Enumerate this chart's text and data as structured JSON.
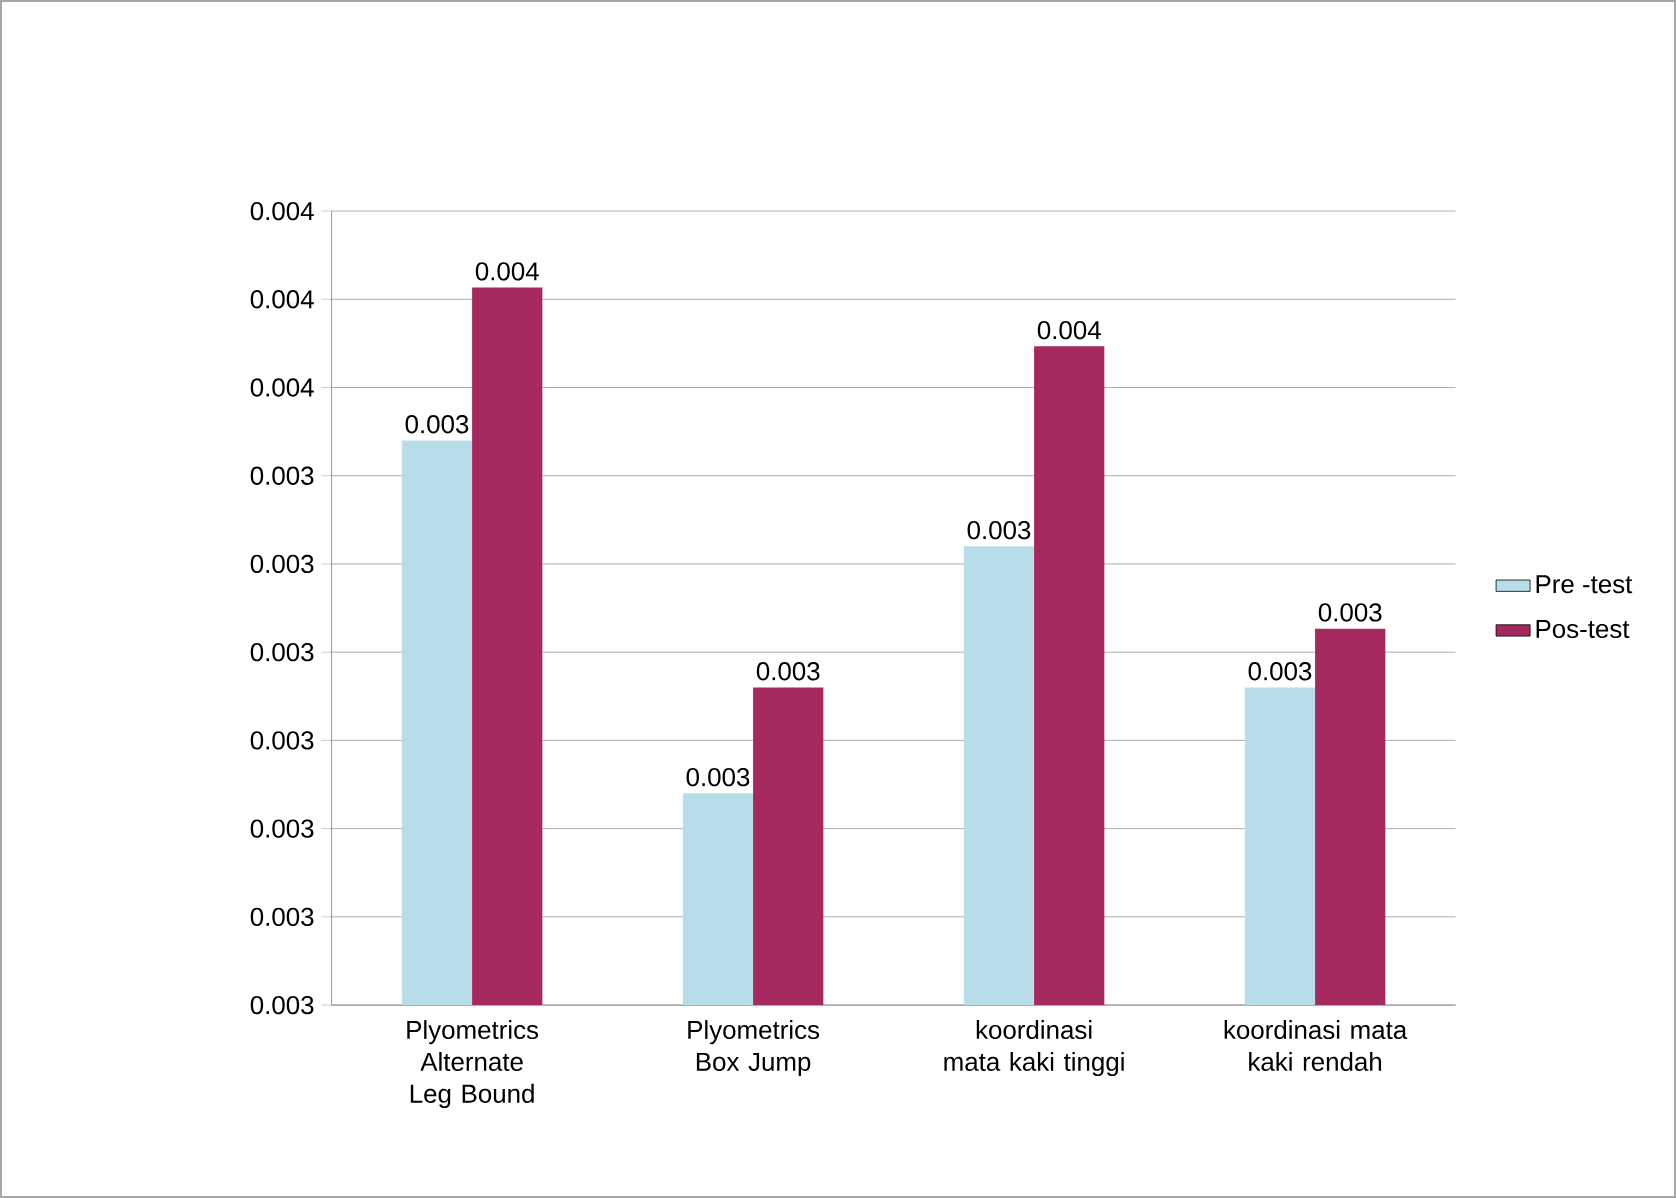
{
  "chart_data": {
    "type": "bar",
    "categories": [
      "Plyometrics Alternate Leg Bound",
      "Plyometrics Box Jump",
      "koordinasi mata kaki tinggi",
      "koordinasi mata kaki rendah"
    ],
    "series": [
      {
        "name": "Pre -test",
        "color": "#b7dde8",
        "values": [
          0.00348,
          0.00318,
          0.00339,
          0.00327
        ],
        "value_labels": [
          "0.003",
          "0.003",
          "0.003",
          "0.003"
        ]
      },
      {
        "name": "Pos-test",
        "color": "#a5285f",
        "values": [
          0.00361,
          0.00327,
          0.00356,
          0.00332
        ],
        "value_labels": [
          "0.004",
          "0.003",
          "0.004",
          "0.003"
        ]
      }
    ],
    "ylim": [
      0.003,
      0.003675
    ],
    "yticks": [
      {
        "value": 0.003,
        "label": "0.003"
      },
      {
        "value": 0.003075,
        "label": "0.003"
      },
      {
        "value": 0.00315,
        "label": "0.003"
      },
      {
        "value": 0.003225,
        "label": "0.003"
      },
      {
        "value": 0.0033,
        "label": "0.003"
      },
      {
        "value": 0.003375,
        "label": "0.003"
      },
      {
        "value": 0.00345,
        "label": "0.003"
      },
      {
        "value": 0.003525,
        "label": "0.004"
      },
      {
        "value": 0.0036,
        "label": "0.004"
      },
      {
        "value": 0.003675,
        "label": "0.004"
      }
    ],
    "grid": "y",
    "legend": "right"
  }
}
